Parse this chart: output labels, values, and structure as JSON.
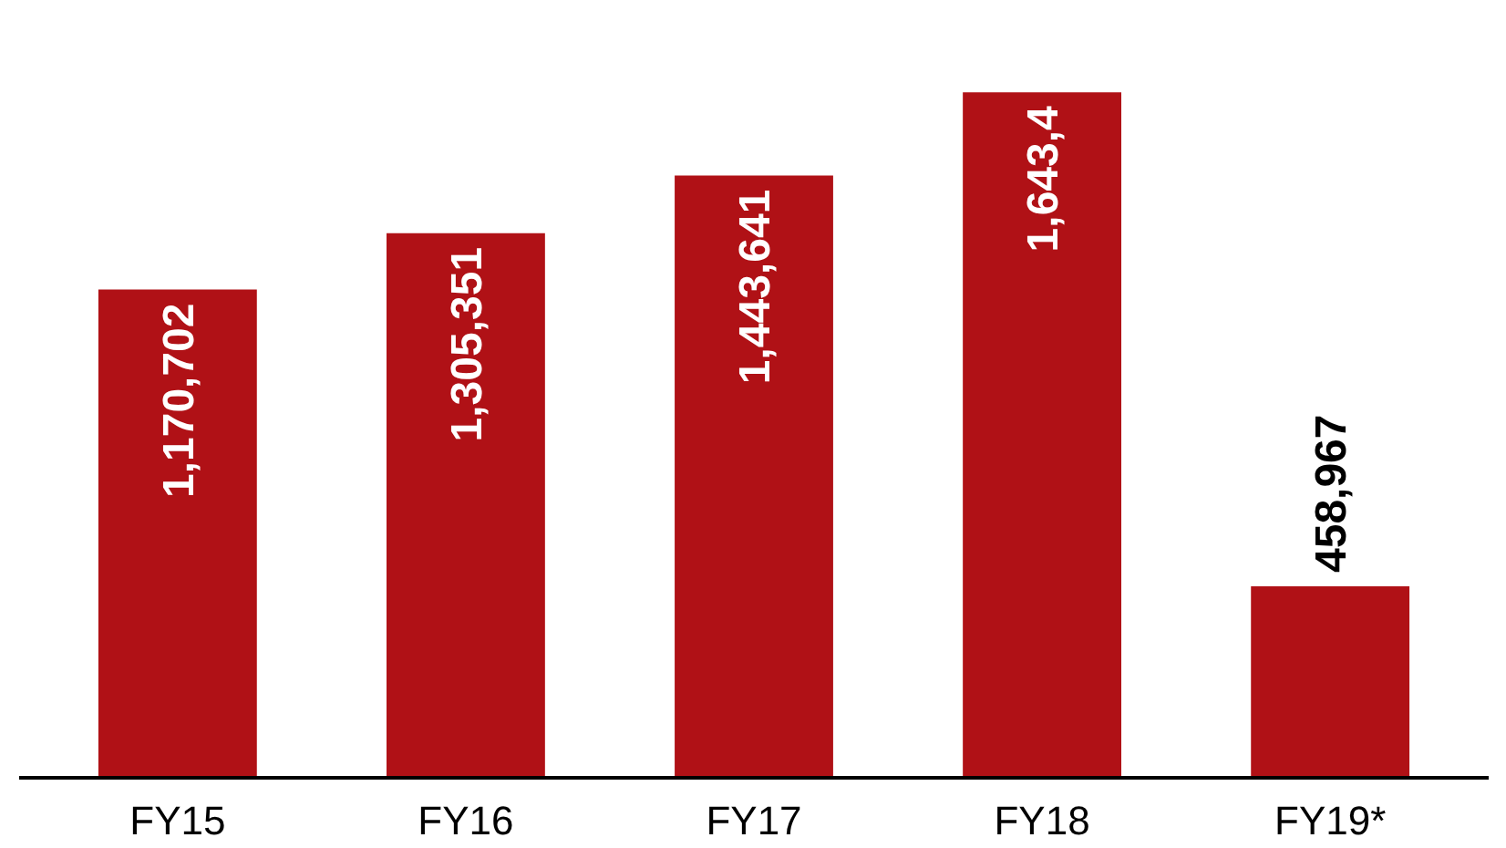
{
  "chart_data": {
    "type": "bar",
    "categories": [
      "FY15",
      "FY16",
      "FY17",
      "FY18",
      "FY19*"
    ],
    "values": [
      1170702,
      1305351,
      1443641,
      1643400,
      458967
    ],
    "value_labels": [
      "1,170,702",
      "1,305,351",
      "1,443,641",
      "1,643,4",
      "458,967"
    ],
    "color": "#b01116",
    "grid": false
  }
}
